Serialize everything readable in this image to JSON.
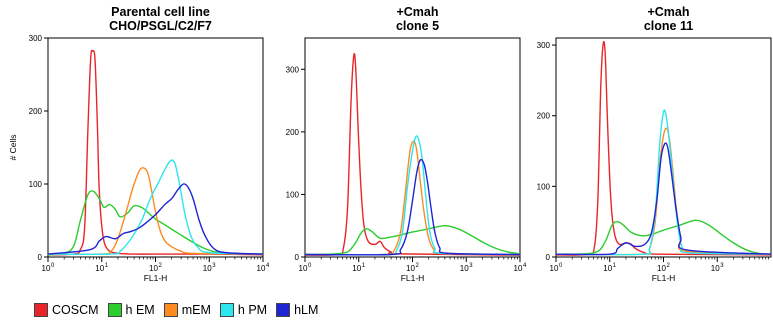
{
  "legend": [
    {
      "name": "COSCM",
      "color": "#e8262a"
    },
    {
      "name": "h EM",
      "color": "#2dcc2d"
    },
    {
      "name": "mEM",
      "color": "#ff8a1f"
    },
    {
      "name": "h PM",
      "color": "#2ce6f0"
    },
    {
      "name": "hLM",
      "color": "#1f24d4"
    }
  ],
  "chart_data": [
    {
      "type": "line",
      "title": [
        "Parental cell line",
        "CHO/PSGL/C2/F7"
      ],
      "xlabel": "FL1-H",
      "ylabel": "# Cells",
      "xscale": "log",
      "xlim": [
        1,
        10000
      ],
      "ylim": [
        0,
        300
      ],
      "yticks": [
        0,
        100,
        200,
        300
      ],
      "xticks": [
        1,
        10,
        100,
        1000,
        10000
      ],
      "series": [
        {
          "name": "COSCM",
          "color": "#e8262a",
          "points": [
            [
              1,
              3
            ],
            [
              3,
              4
            ],
            [
              4,
              10
            ],
            [
              4.8,
              40
            ],
            [
              5.5,
              170
            ],
            [
              6.2,
              270
            ],
            [
              6.8,
              282
            ],
            [
              7.5,
              270
            ],
            [
              8.3,
              180
            ],
            [
              9,
              90
            ],
            [
              10.5,
              30
            ],
            [
              13,
              10
            ],
            [
              20,
              5
            ],
            [
              40,
              4
            ],
            [
              100,
              4
            ],
            [
              1000,
              4
            ],
            [
              10000,
              3
            ]
          ]
        },
        {
          "name": "h EM",
          "color": "#2dcc2d",
          "points": [
            [
              1,
              3
            ],
            [
              2,
              5
            ],
            [
              3,
              15
            ],
            [
              4,
              50
            ],
            [
              5.5,
              85
            ],
            [
              7,
              90
            ],
            [
              9,
              80
            ],
            [
              11,
              68
            ],
            [
              14,
              72
            ],
            [
              18,
              65
            ],
            [
              22,
              55
            ],
            [
              30,
              60
            ],
            [
              40,
              70
            ],
            [
              55,
              68
            ],
            [
              75,
              60
            ],
            [
              100,
              52
            ],
            [
              150,
              44
            ],
            [
              200,
              38
            ],
            [
              300,
              30
            ],
            [
              500,
              20
            ],
            [
              800,
              12
            ],
            [
              1300,
              7
            ],
            [
              2500,
              5
            ],
            [
              10000,
              4
            ]
          ]
        },
        {
          "name": "mEM",
          "color": "#ff8a1f",
          "points": [
            [
              1,
              4
            ],
            [
              10,
              4
            ],
            [
              15,
              8
            ],
            [
              20,
              25
            ],
            [
              28,
              60
            ],
            [
              38,
              95
            ],
            [
              50,
              118
            ],
            [
              60,
              122
            ],
            [
              72,
              115
            ],
            [
              85,
              90
            ],
            [
              100,
              62
            ],
            [
              120,
              38
            ],
            [
              150,
              22
            ],
            [
              200,
              14
            ],
            [
              300,
              8
            ],
            [
              500,
              5
            ],
            [
              10000,
              4
            ]
          ]
        },
        {
          "name": "h PM",
          "color": "#2ce6f0",
          "points": [
            [
              1,
              4
            ],
            [
              15,
              4
            ],
            [
              22,
              8
            ],
            [
              35,
              25
            ],
            [
              55,
              50
            ],
            [
              80,
              80
            ],
            [
              110,
              100
            ],
            [
              150,
              120
            ],
            [
              190,
              132
            ],
            [
              230,
              128
            ],
            [
              280,
              100
            ],
            [
              350,
              60
            ],
            [
              450,
              30
            ],
            [
              600,
              14
            ],
            [
              1000,
              6
            ],
            [
              10000,
              4
            ]
          ]
        },
        {
          "name": "hLM",
          "color": "#1f24d4",
          "points": [
            [
              1,
              4
            ],
            [
              6,
              10
            ],
            [
              9,
              22
            ],
            [
              12,
              28
            ],
            [
              18,
              25
            ],
            [
              25,
              32
            ],
            [
              35,
              35
            ],
            [
              50,
              40
            ],
            [
              70,
              48
            ],
            [
              100,
              58
            ],
            [
              150,
              72
            ],
            [
              200,
              80
            ],
            [
              260,
              92
            ],
            [
              330,
              100
            ],
            [
              400,
              96
            ],
            [
              500,
              80
            ],
            [
              650,
              50
            ],
            [
              850,
              28
            ],
            [
              1200,
              12
            ],
            [
              2000,
              6
            ],
            [
              10000,
              4
            ]
          ]
        }
      ]
    },
    {
      "type": "line",
      "title": [
        "+Cmah",
        "clone 5"
      ],
      "xlabel": "FL1-H",
      "xscale": "log",
      "xlim": [
        1,
        10000
      ],
      "ylim": [
        0,
        350
      ],
      "yticks": [
        0,
        100,
        200,
        300
      ],
      "xticks": [
        1,
        10,
        100,
        1000,
        10000
      ],
      "series": [
        {
          "name": "COSCM",
          "color": "#e8262a",
          "points": [
            [
              1,
              3
            ],
            [
              4,
              4
            ],
            [
              5.2,
              15
            ],
            [
              6.2,
              80
            ],
            [
              7.2,
              250
            ],
            [
              8.1,
              322
            ],
            [
              8.8,
              300
            ],
            [
              9.8,
              200
            ],
            [
              11,
              110
            ],
            [
              12.5,
              50
            ],
            [
              15,
              25
            ],
            [
              20,
              20
            ],
            [
              25,
              25
            ],
            [
              30,
              15
            ],
            [
              40,
              8
            ],
            [
              60,
              5
            ],
            [
              10000,
              3
            ]
          ]
        },
        {
          "name": "h EM",
          "color": "#2dcc2d",
          "points": [
            [
              1,
              4
            ],
            [
              5,
              6
            ],
            [
              8,
              18
            ],
            [
              11,
              38
            ],
            [
              14,
              45
            ],
            [
              18,
              40
            ],
            [
              25,
              30
            ],
            [
              40,
              32
            ],
            [
              60,
              35
            ],
            [
              100,
              40
            ],
            [
              200,
              45
            ],
            [
              400,
              50
            ],
            [
              700,
              45
            ],
            [
              1200,
              35
            ],
            [
              2000,
              24
            ],
            [
              3500,
              14
            ],
            [
              6000,
              8
            ],
            [
              10000,
              5
            ]
          ]
        },
        {
          "name": "mEM",
          "color": "#ff8a1f",
          "points": [
            [
              1,
              4
            ],
            [
              30,
              4
            ],
            [
              45,
              10
            ],
            [
              60,
              40
            ],
            [
              75,
              110
            ],
            [
              90,
              170
            ],
            [
              105,
              185
            ],
            [
              120,
              170
            ],
            [
              140,
              120
            ],
            [
              165,
              70
            ],
            [
              200,
              30
            ],
            [
              250,
              12
            ],
            [
              350,
              6
            ],
            [
              10000,
              4
            ]
          ]
        },
        {
          "name": "h PM",
          "color": "#2ce6f0",
          "points": [
            [
              1,
              4
            ],
            [
              35,
              4
            ],
            [
              50,
              10
            ],
            [
              65,
              40
            ],
            [
              80,
              110
            ],
            [
              100,
              170
            ],
            [
              115,
              192
            ],
            [
              130,
              188
            ],
            [
              150,
              160
            ],
            [
              175,
              100
            ],
            [
              210,
              40
            ],
            [
              260,
              14
            ],
            [
              350,
              6
            ],
            [
              10000,
              4
            ]
          ]
        },
        {
          "name": "hLM",
          "color": "#1f24d4",
          "points": [
            [
              1,
              4
            ],
            [
              40,
              4
            ],
            [
              60,
              12
            ],
            [
              80,
              40
            ],
            [
              100,
              90
            ],
            [
              120,
              135
            ],
            [
              140,
              155
            ],
            [
              165,
              148
            ],
            [
              190,
              120
            ],
            [
              220,
              80
            ],
            [
              260,
              40
            ],
            [
              320,
              15
            ],
            [
              450,
              6
            ],
            [
              10000,
              4
            ]
          ]
        }
      ]
    },
    {
      "type": "line",
      "title": [
        "+Cmah",
        "clone 11"
      ],
      "xlabel": "FL1-H",
      "xscale": "log",
      "xlim": [
        1,
        10000
      ],
      "ylim": [
        0,
        310
      ],
      "yticks": [
        0,
        100,
        200,
        300
      ],
      "xticks": [
        1,
        10,
        100,
        1000
      ],
      "series": [
        {
          "name": "COSCM",
          "color": "#e8262a",
          "points": [
            [
              1,
              3
            ],
            [
              4,
              4
            ],
            [
              5.2,
              15
            ],
            [
              6,
              80
            ],
            [
              6.8,
              240
            ],
            [
              7.5,
              300
            ],
            [
              8.2,
              290
            ],
            [
              9,
              200
            ],
            [
              10,
              110
            ],
            [
              11,
              60
            ],
            [
              12.5,
              30
            ],
            [
              15,
              18
            ],
            [
              20,
              20
            ],
            [
              25,
              18
            ],
            [
              30,
              12
            ],
            [
              45,
              6
            ],
            [
              80,
              4
            ],
            [
              10000,
              3
            ]
          ]
        },
        {
          "name": "h EM",
          "color": "#2dcc2d",
          "points": [
            [
              1,
              4
            ],
            [
              5,
              6
            ],
            [
              8,
              20
            ],
            [
              11,
              45
            ],
            [
              14,
              50
            ],
            [
              18,
              45
            ],
            [
              25,
              35
            ],
            [
              40,
              30
            ],
            [
              60,
              32
            ],
            [
              100,
              38
            ],
            [
              200,
              45
            ],
            [
              400,
              52
            ],
            [
              700,
              45
            ],
            [
              1200,
              32
            ],
            [
              2000,
              20
            ],
            [
              3500,
              10
            ],
            [
              6000,
              5
            ],
            [
              10000,
              4
            ]
          ]
        },
        {
          "name": "mEM",
          "color": "#ff8a1f",
          "points": [
            [
              1,
              4
            ],
            [
              40,
              4
            ],
            [
              55,
              12
            ],
            [
              70,
              50
            ],
            [
              85,
              130
            ],
            [
              100,
              172
            ],
            [
              115,
              182
            ],
            [
              130,
              165
            ],
            [
              150,
              120
            ],
            [
              175,
              65
            ],
            [
              210,
              25
            ],
            [
              270,
              8
            ],
            [
              10000,
              4
            ]
          ]
        },
        {
          "name": "h PM",
          "color": "#2ce6f0",
          "points": [
            [
              1,
              4
            ],
            [
              40,
              4
            ],
            [
              55,
              12
            ],
            [
              70,
              60
            ],
            [
              85,
              160
            ],
            [
              100,
              205
            ],
            [
              112,
              200
            ],
            [
              128,
              165
            ],
            [
              150,
              110
            ],
            [
              180,
              50
            ],
            [
              220,
              15
            ],
            [
              300,
              6
            ],
            [
              10000,
              4
            ]
          ]
        },
        {
          "name": "hLM",
          "color": "#1f24d4",
          "points": [
            [
              1,
              4
            ],
            [
              10,
              4
            ],
            [
              14,
              12
            ],
            [
              20,
              20
            ],
            [
              30,
              15
            ],
            [
              45,
              18
            ],
            [
              60,
              35
            ],
            [
              75,
              80
            ],
            [
              90,
              140
            ],
            [
              105,
              160
            ],
            [
              120,
              155
            ],
            [
              140,
              120
            ],
            [
              170,
              70
            ],
            [
              210,
              28
            ],
            [
              270,
              10
            ],
            [
              10000,
              4
            ]
          ]
        }
      ]
    }
  ]
}
